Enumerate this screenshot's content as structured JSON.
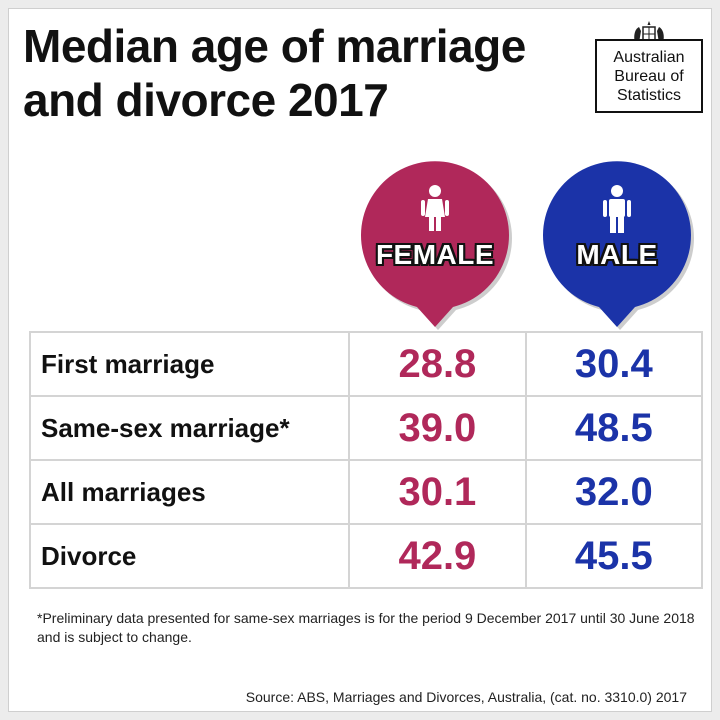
{
  "title_line1": "Median age of marriage",
  "title_line2": "and divorce 2017",
  "logo": {
    "line1": "Australian",
    "line2": "Bureau of",
    "line3": "Statistics",
    "crest_icon": "coat-of-arms-icon"
  },
  "columns": {
    "female": {
      "label": "FEMALE",
      "color": "#b0285a",
      "icon": "female-icon"
    },
    "male": {
      "label": "MALE",
      "color": "#1b33a8",
      "icon": "male-icon"
    }
  },
  "rows": [
    {
      "label": "First marriage",
      "female": "28.8",
      "male": "30.4"
    },
    {
      "label": "Same-sex marriage*",
      "female": "39.0",
      "male": "48.5"
    },
    {
      "label": "All marriages",
      "female": "30.1",
      "male": "32.0"
    },
    {
      "label": "Divorce",
      "female": "42.9",
      "male": "45.5"
    }
  ],
  "footnote": "*Preliminary data presented for same-sex marriages is for the period 9 December 2017 until 30 June 2018 and is subject to change.",
  "source": "Source: ABS, Marriages and Divorces, Australia, (cat. no. 3310.0) 2017",
  "chart_data": {
    "type": "table",
    "title": "Median age of marriage and divorce 2017",
    "columns": [
      "FEMALE",
      "MALE"
    ],
    "categories": [
      "First marriage",
      "Same-sex marriage*",
      "All marriages",
      "Divorce"
    ],
    "series": [
      {
        "name": "FEMALE",
        "values": [
          28.8,
          39.0,
          30.1,
          42.9
        ]
      },
      {
        "name": "MALE",
        "values": [
          30.4,
          48.5,
          32.0,
          45.5
        ]
      }
    ]
  }
}
